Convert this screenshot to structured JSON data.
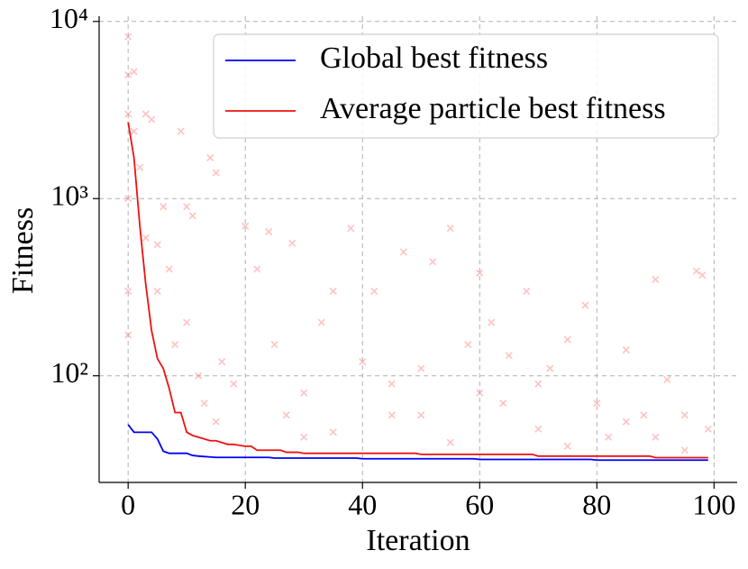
{
  "chart_data": {
    "type": "line",
    "xlabel": "Iteration",
    "ylabel": "Fitness",
    "x": [
      0,
      1,
      2,
      3,
      4,
      5,
      6,
      7,
      8,
      9,
      10,
      11,
      12,
      13,
      14,
      15,
      16,
      17,
      18,
      19,
      20,
      21,
      22,
      23,
      24,
      25,
      26,
      27,
      28,
      29,
      30,
      31,
      32,
      33,
      34,
      35,
      36,
      37,
      38,
      39,
      40,
      41,
      42,
      43,
      44,
      45,
      46,
      47,
      48,
      49,
      50,
      51,
      52,
      53,
      54,
      55,
      56,
      57,
      58,
      59,
      60,
      61,
      62,
      63,
      64,
      65,
      66,
      67,
      68,
      69,
      70,
      71,
      72,
      73,
      74,
      75,
      76,
      77,
      78,
      79,
      80,
      81,
      82,
      83,
      84,
      85,
      86,
      87,
      88,
      89,
      90,
      91,
      92,
      93,
      94,
      95,
      96,
      97,
      98,
      99
    ],
    "series": [
      {
        "name": "Global best fitness",
        "color": "#0000ff",
        "values": [
          53,
          48,
          48,
          48,
          48,
          44,
          37.5,
          36.5,
          36.5,
          36.5,
          36.5,
          35.5,
          35.2,
          35,
          34.8,
          34.6,
          34.6,
          34.6,
          34.6,
          34.6,
          34.6,
          34.6,
          34.6,
          34.6,
          34.6,
          34.3,
          34.3,
          34.3,
          34.3,
          34.3,
          34.3,
          34.3,
          34.3,
          34.3,
          34.3,
          34.3,
          34.3,
          34.3,
          34.3,
          34.3,
          34,
          34,
          34,
          34,
          34,
          34,
          34,
          34,
          34,
          34,
          34,
          34,
          34,
          34,
          34,
          34,
          34,
          34,
          34,
          34,
          33.7,
          33.7,
          33.7,
          33.7,
          33.7,
          33.7,
          33.7,
          33.7,
          33.7,
          33.7,
          33.7,
          33.7,
          33.7,
          33.7,
          33.7,
          33.7,
          33.7,
          33.7,
          33.7,
          33.7,
          33.4,
          33.4,
          33.4,
          33.4,
          33.4,
          33.4,
          33.4,
          33.4,
          33.4,
          33.4,
          33.4,
          33.4,
          33.4,
          33.4,
          33.4,
          33.4,
          33.4,
          33.4,
          33.4,
          33.4
        ]
      },
      {
        "name": "Average particle best fitness",
        "color": "#ee1111",
        "values": [
          2700,
          1700,
          700,
          330,
          180,
          125,
          110,
          85,
          62,
          62,
          48,
          46,
          45,
          44,
          43,
          43,
          42,
          41,
          41,
          40.5,
          40,
          40,
          38,
          38,
          38,
          38,
          38,
          37,
          37,
          37,
          36.5,
          36.5,
          36.5,
          36.5,
          36.5,
          36.5,
          36.5,
          36.5,
          36.5,
          36.5,
          36.5,
          36.5,
          36.5,
          36.5,
          36.5,
          36.5,
          36.5,
          36.5,
          36.5,
          36.5,
          36,
          36,
          36,
          36,
          36,
          36,
          36,
          36,
          36,
          36,
          36,
          36,
          36,
          36,
          36,
          36,
          36,
          36,
          36,
          36,
          35.2,
          35.2,
          35.2,
          35.2,
          35.2,
          35.2,
          35.2,
          35.2,
          35.2,
          35.2,
          35.2,
          35.2,
          35.2,
          35.2,
          35.2,
          35.2,
          35.2,
          35.2,
          35.2,
          35.2,
          34.5,
          34.5,
          34.5,
          34.5,
          34.5,
          34.5,
          34.5,
          34.5,
          34.5,
          34.5
        ]
      }
    ],
    "scatter": {
      "color": "#ff6666",
      "x": [
        0,
        0,
        0,
        0,
        0,
        0,
        1,
        1,
        2,
        3,
        3,
        4,
        5,
        5,
        6,
        7,
        8,
        9,
        10,
        11,
        12,
        13,
        14,
        15,
        16,
        18,
        20,
        22,
        24,
        25,
        27,
        28,
        30,
        33,
        35,
        38,
        40,
        42,
        45,
        47,
        50,
        52,
        55,
        58,
        60,
        62,
        64,
        65,
        68,
        70,
        72,
        75,
        78,
        80,
        82,
        85,
        88,
        90,
        92,
        95,
        97,
        98,
        99,
        15,
        35,
        55,
        75,
        95,
        10,
        30,
        50,
        70,
        90,
        45,
        60,
        85
      ],
      "values": [
        8200,
        5000,
        3000,
        1000,
        300,
        170,
        5200,
        2400,
        1500,
        3000,
        600,
        2800,
        550,
        300,
        900,
        400,
        150,
        2400,
        900,
        800,
        100,
        70,
        1700,
        1400,
        120,
        90,
        700,
        400,
        650,
        150,
        60,
        560,
        80,
        200,
        300,
        680,
        120,
        300,
        90,
        500,
        60,
        440,
        680,
        150,
        380,
        200,
        70,
        130,
        300,
        90,
        110,
        160,
        250,
        70,
        45,
        140,
        60,
        350,
        95,
        60,
        390,
        370,
        50,
        55,
        48,
        42,
        40,
        38,
        200,
        45,
        110,
        50,
        45,
        60,
        80,
        55
      ]
    },
    "xlim": [
      -4.95,
      103.95
    ],
    "ylim": [
      25,
      10700
    ],
    "xticks": [
      0,
      20,
      40,
      60,
      80,
      100
    ],
    "yticks": [
      {
        "value": 100,
        "label": "10²"
      },
      {
        "value": 1000,
        "label": "10³"
      },
      {
        "value": 10000,
        "label": "10⁴"
      }
    ],
    "log_y": true,
    "grid": true,
    "legend": "upper right"
  }
}
